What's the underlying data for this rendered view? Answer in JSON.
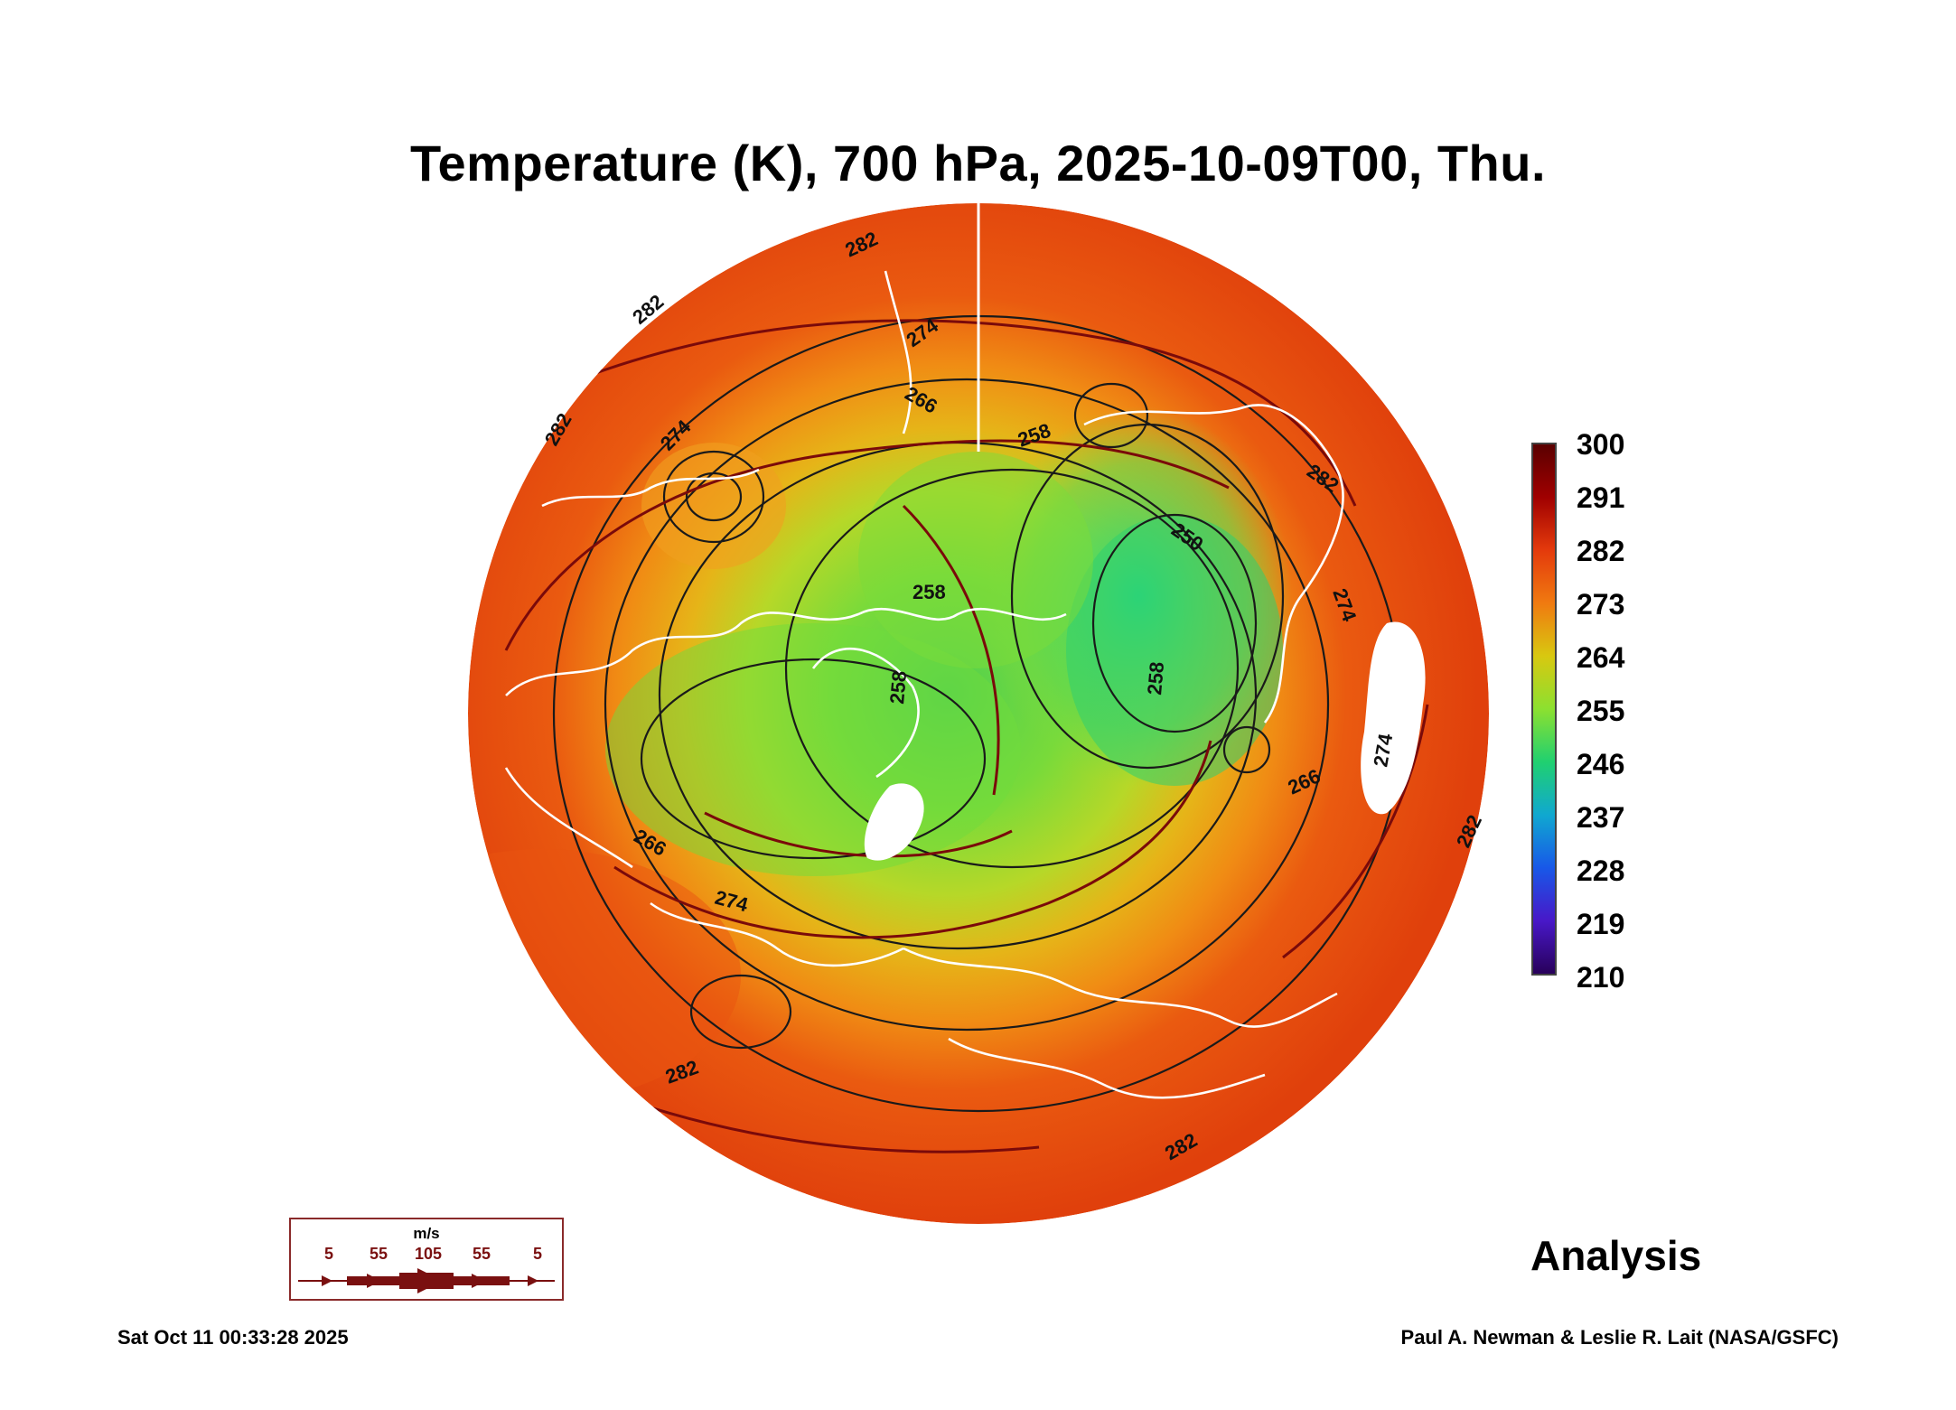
{
  "title": "Temperature (K), 700 hPa, 2025-10-09T00, Thu.",
  "colorbar": {
    "labels": [
      "300",
      "291",
      "282",
      "273",
      "264",
      "255",
      "246",
      "237",
      "228",
      "219",
      "210"
    ],
    "colors": {
      "c300": "#5a0000",
      "c291": "#a00000",
      "c282": "#e43a0c",
      "c273": "#f07a10",
      "c264": "#d8c810",
      "c255": "#8ce030",
      "c246": "#20d070",
      "c237": "#10a8d0",
      "c228": "#1858e8",
      "c219": "#4818c8",
      "c210": "#28005a"
    }
  },
  "contour_labels": {
    "l282a": "282",
    "l282b": "282",
    "l282c": "282",
    "l282d": "282",
    "l282e": "282",
    "l282f": "282",
    "l282g": "282",
    "l274a": "274",
    "l274b": "274",
    "l274c": "274",
    "l274d": "274",
    "l274e": "274",
    "l266a": "266",
    "l266b": "266",
    "l266c": "266",
    "l258a": "258",
    "l258b": "258",
    "l258c": "258",
    "l258d": "258",
    "l250a": "250"
  },
  "wind_legend": {
    "unit": "m/s",
    "values": [
      "5",
      "55",
      "105",
      "55",
      "5"
    ]
  },
  "analysis_label": "Analysis",
  "timestamp": "Sat Oct 11 00:33:28 2025",
  "credit": "Paul A. Newman & Leslie R. Lait (NASA/GSFC)"
}
